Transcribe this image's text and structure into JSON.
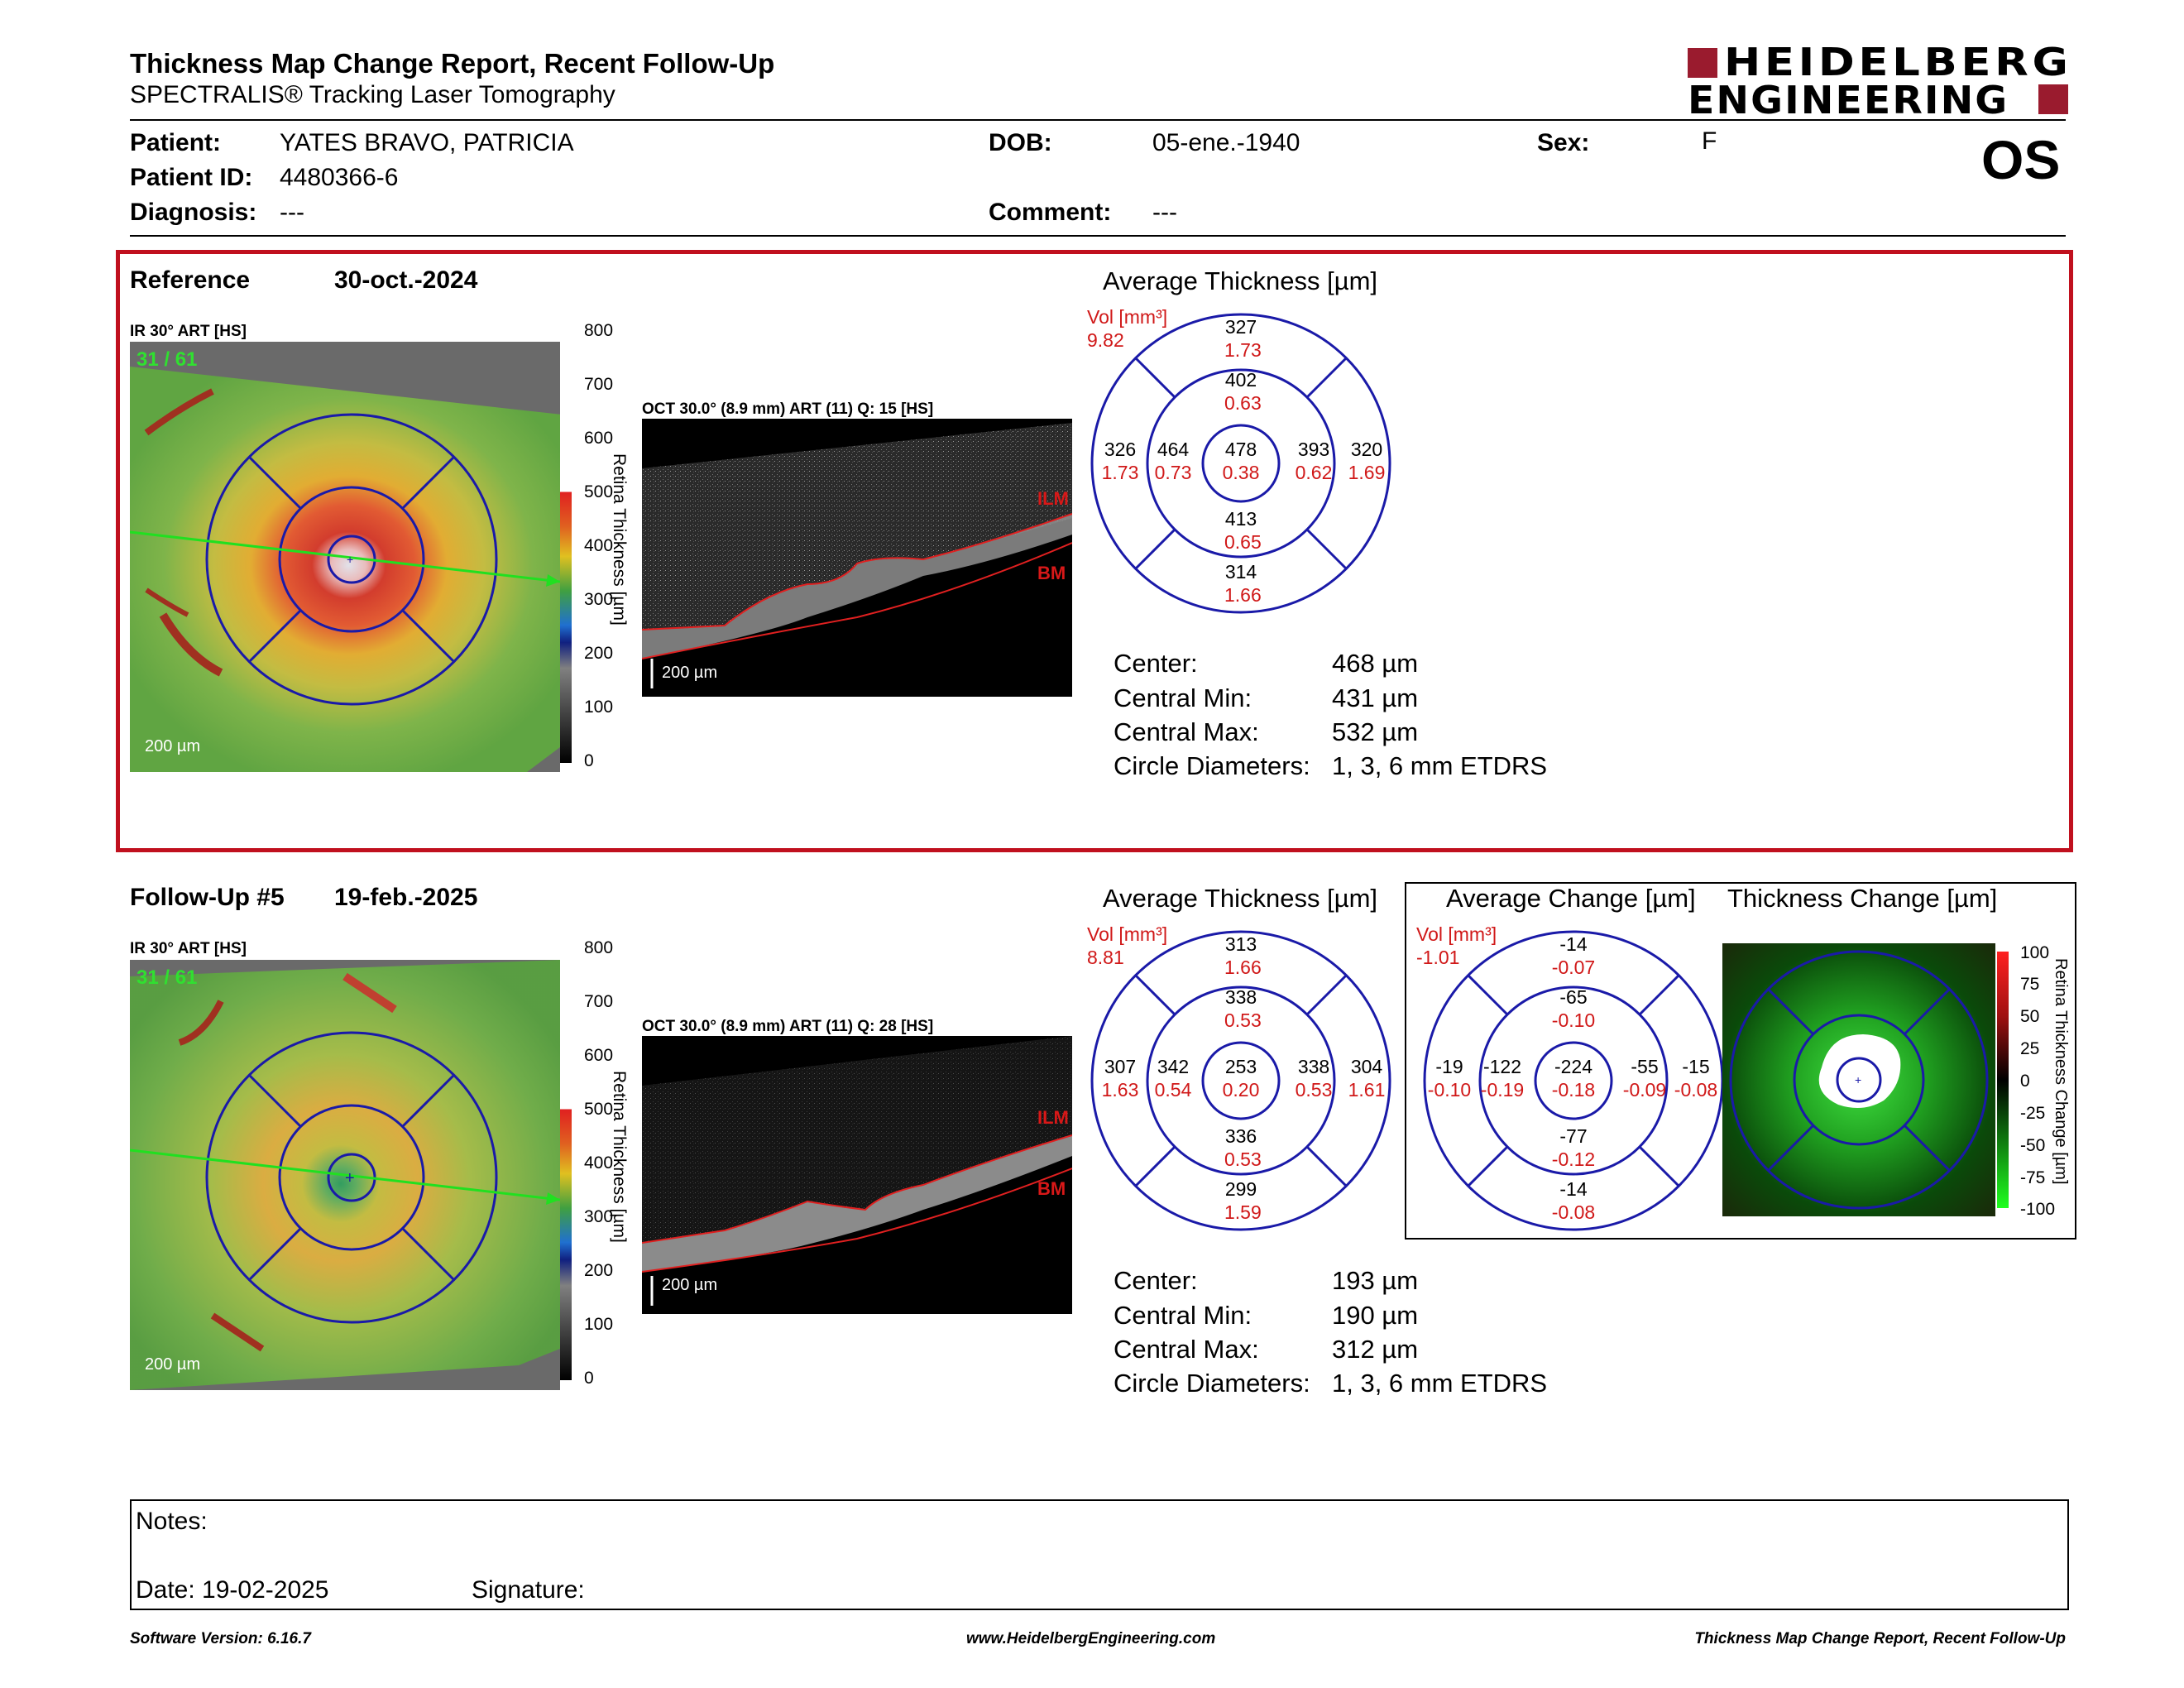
{
  "header": {
    "title": "Thickness Map Change Report, Recent Follow-Up",
    "subtitle": "SPECTRALIS® Tracking Laser Tomography",
    "logo_line1": "HEIDELBERG",
    "logo_line2": "ENGINEERING",
    "eye": "OS"
  },
  "patient": {
    "patient_label": "Patient:",
    "patient_value": "YATES BRAVO, PATRICIA",
    "id_label": "Patient ID:",
    "id_value": "4480366-6",
    "diagnosis_label": "Diagnosis:",
    "diagnosis_value": "---",
    "dob_label": "DOB:",
    "dob_value": "05-ene.-1940",
    "comment_label": "Comment:",
    "comment_value": "---",
    "sex_label": "Sex:",
    "sex_value": "F"
  },
  "reference": {
    "label": "Reference",
    "date": "30-oct.-2024",
    "ir_label": "IR 30° ART [HS]",
    "frame": "31 / 61",
    "scale": "200 µm",
    "oct_label": "OCT 30.0° (8.9 mm) ART (11) Q: 15 [HS]",
    "oct_scale": "200 µm",
    "ilm": "ILM",
    "bm": "BM",
    "avg_title": "Average Thickness [µm]",
    "vol_label": "Vol [mm³]",
    "vol_value": "9.82",
    "grid": {
      "outer_top": [
        "327",
        "1.73"
      ],
      "inner_top": [
        "402",
        "0.63"
      ],
      "outer_left": [
        "326",
        "1.73"
      ],
      "inner_left": [
        "464",
        "0.73"
      ],
      "center": [
        "478",
        "0.38"
      ],
      "inner_right": [
        "393",
        "0.62"
      ],
      "outer_right": [
        "320",
        "1.69"
      ],
      "inner_bottom": [
        "413",
        "0.65"
      ],
      "outer_bottom": [
        "314",
        "1.66"
      ]
    },
    "stats": [
      {
        "label": "Center:",
        "value": "468 µm"
      },
      {
        "label": "Central Min:",
        "value": "431 µm"
      },
      {
        "label": "Central Max:",
        "value": "532 µm"
      },
      {
        "label": "Circle Diameters:",
        "value": "1, 3, 6 mm ETDRS"
      }
    ]
  },
  "followup": {
    "label": "Follow-Up #5",
    "date": "19-feb.-2025",
    "ir_label": "IR 30° ART [HS]",
    "frame": "31 / 61",
    "scale": "200 µm",
    "oct_label": "OCT 30.0° (8.9 mm) ART (11) Q: 28 [HS]",
    "oct_scale": "200 µm",
    "ilm": "ILM",
    "bm": "BM",
    "avg_title": "Average Thickness [µm]",
    "vol_label": "Vol [mm³]",
    "vol_value": "8.81",
    "grid": {
      "outer_top": [
        "313",
        "1.66"
      ],
      "inner_top": [
        "338",
        "0.53"
      ],
      "outer_left": [
        "307",
        "1.63"
      ],
      "inner_left": [
        "342",
        "0.54"
      ],
      "center": [
        "253",
        "0.20"
      ],
      "inner_right": [
        "338",
        "0.53"
      ],
      "outer_right": [
        "304",
        "1.61"
      ],
      "inner_bottom": [
        "336",
        "0.53"
      ],
      "outer_bottom": [
        "299",
        "1.59"
      ]
    },
    "stats": [
      {
        "label": "Center:",
        "value": "193 µm"
      },
      {
        "label": "Central Min:",
        "value": "190 µm"
      },
      {
        "label": "Central Max:",
        "value": "312 µm"
      },
      {
        "label": "Circle Diameters:",
        "value": "1, 3, 6 mm ETDRS"
      }
    ]
  },
  "change": {
    "avg_title": "Average Change [µm]",
    "map_title": "Thickness Change [µm]",
    "vol_label": "Vol [mm³]",
    "vol_value": "-1.01",
    "grid": {
      "outer_top": [
        "-14",
        "-0.07"
      ],
      "inner_top": [
        "-65",
        "-0.10"
      ],
      "outer_left": [
        "-19",
        "-0.10"
      ],
      "inner_left": [
        "-122",
        "-0.19"
      ],
      "center": [
        "-224",
        "-0.18"
      ],
      "inner_right": [
        "-55",
        "-0.09"
      ],
      "outer_right": [
        "-15",
        "-0.08"
      ],
      "inner_bottom": [
        "-77",
        "-0.12"
      ],
      "outer_bottom": [
        "-14",
        "-0.08"
      ]
    },
    "colorbar_ticks": [
      "100",
      "75",
      "50",
      "25",
      "0",
      "-25",
      "-50",
      "-75",
      "-100"
    ],
    "colorbar_title": "Retina Thickness Change [µm]"
  },
  "thickness_colorbar": {
    "ticks": [
      "800",
      "700",
      "600",
      "500",
      "400",
      "300",
      "200",
      "100",
      "0"
    ],
    "title": "Retina Thickness [µm]"
  },
  "notes": {
    "notes_label": "Notes:",
    "date_label": "Date: 19-02-2025",
    "signature_label": "Signature:"
  },
  "footer": {
    "software": "Software Version: 6.16.7",
    "url": "www.HeidelbergEngineering.com",
    "report": "Thickness Map Change Report, Recent Follow-Up"
  },
  "colors": {
    "frame_red": "#c0101e",
    "grid_blue": "#1a1aa8",
    "vol_red": "#d01818",
    "logo_red": "#9a1b2e"
  }
}
